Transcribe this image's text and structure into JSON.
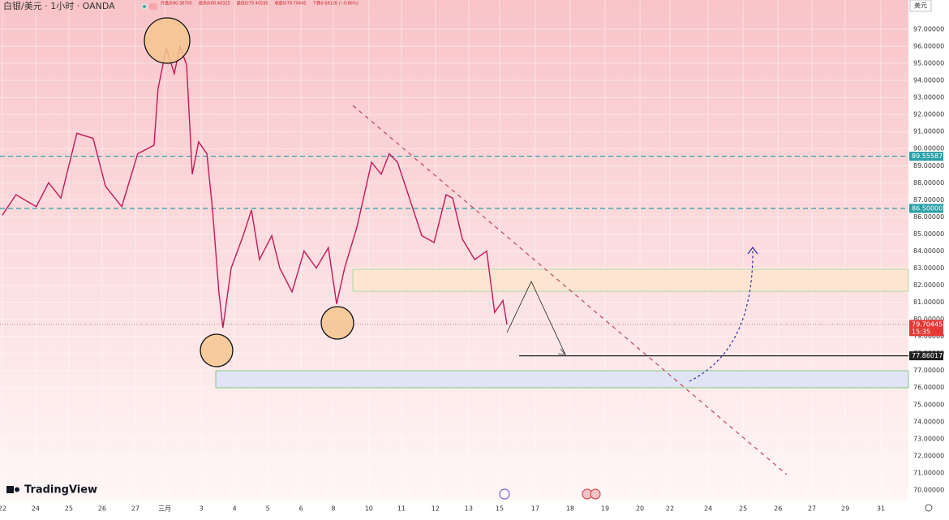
{
  "chart_data": {
    "type": "line",
    "symbol": "白银/美元 · 1小时 · OANDA",
    "ohlc": [
      "开盘价80.38705",
      "最高价80.48325",
      "最低价79.40595",
      "收盘价79.70445",
      "下跌0.68126 (−0.86%)"
    ],
    "currency": "美元",
    "logo": "TradingView",
    "color": "#c2185b",
    "x": [
      0,
      0.41,
      1.02,
      1.39,
      1.76,
      2.24,
      2.73,
      3.1,
      3.59,
      4.07,
      4.56,
      4.68,
      4.93,
      5.17,
      5.34,
      5.54,
      5.71,
      5.9,
      6.15,
      6.32,
      6.51,
      6.63,
      6.88,
      7.24,
      7.49,
      7.73,
      8.1,
      8.34,
      8.71,
      9.07,
      9.44,
      9.8,
      10.05,
      10.29,
      10.66,
      11.1,
      11.39,
      11.63,
      11.88,
      12.12,
      12.61,
      12.98,
      13.34,
      13.54,
      13.83,
      14.2,
      14.56,
      14.8,
      15.05,
      15.17
    ],
    "values": [
      86.1,
      87.3,
      86.6,
      88.0,
      87.1,
      90.9,
      90.6,
      87.8,
      86.6,
      89.7,
      90.2,
      93.5,
      95.9,
      94.4,
      96.0,
      94.9,
      88.5,
      90.4,
      89.7,
      86.4,
      81.6,
      79.5,
      83.0,
      84.9,
      86.4,
      83.5,
      84.9,
      83.0,
      81.6,
      84.0,
      83.0,
      84.2,
      80.9,
      83.0,
      85.4,
      89.2,
      88.5,
      89.7,
      89.2,
      87.8,
      84.9,
      84.5,
      87.3,
      87.1,
      84.7,
      83.5,
      84.0,
      80.4,
      81.1,
      79.7
    ],
    "xlim": [
      -0.07,
      27.24
    ],
    "xticks": [
      {
        "value": 0,
        "label": "22"
      },
      {
        "value": 1,
        "label": "24"
      },
      {
        "value": 2,
        "label": "25"
      },
      {
        "value": 3,
        "label": "26"
      },
      {
        "value": 4,
        "label": "27"
      },
      {
        "value": 4.88,
        "label": "三月"
      },
      {
        "value": 5.98,
        "label": "3"
      },
      {
        "value": 6.98,
        "label": "4"
      },
      {
        "value": 7.98,
        "label": "5"
      },
      {
        "value": 8.98,
        "label": "6"
      },
      {
        "value": 9.95,
        "label": "8"
      },
      {
        "value": 11.02,
        "label": "10"
      },
      {
        "value": 12,
        "label": "11"
      },
      {
        "value": 13.02,
        "label": "12"
      },
      {
        "value": 14.02,
        "label": "13"
      },
      {
        "value": 14.95,
        "label": "15"
      },
      {
        "value": 16.02,
        "label": "17"
      },
      {
        "value": 17.07,
        "label": "18"
      },
      {
        "value": 18.12,
        "label": "19"
      },
      {
        "value": 19.17,
        "label": "20"
      },
      {
        "value": 20.07,
        "label": "22"
      },
      {
        "value": 21.22,
        "label": "24"
      },
      {
        "value": 22.27,
        "label": "25"
      },
      {
        "value": 23.32,
        "label": "26"
      },
      {
        "value": 24.34,
        "label": "27"
      },
      {
        "value": 25.34,
        "label": "29"
      },
      {
        "value": 26.41,
        "label": "31"
      }
    ],
    "ylim": [
      69.38,
      98.71
    ],
    "yticks": [
      {
        "value": 70,
        "label": "70.00000"
      },
      {
        "value": 71,
        "label": "71.00000"
      },
      {
        "value": 72,
        "label": "72.00000"
      },
      {
        "value": 73,
        "label": "73.00000"
      },
      {
        "value": 74,
        "label": "74.00000"
      },
      {
        "value": 75,
        "label": "75.00000"
      },
      {
        "value": 76,
        "label": "76.00000"
      },
      {
        "value": 77,
        "label": "77.00000"
      },
      {
        "value": 78,
        "label": "78.00000"
      },
      {
        "value": 79,
        "label": "79.00000"
      },
      {
        "value": 80,
        "label": "80.00000"
      },
      {
        "value": 81,
        "label": "81.00000"
      },
      {
        "value": 82,
        "label": "82.00000"
      },
      {
        "value": 83,
        "label": "83.00000"
      },
      {
        "value": 84,
        "label": "84.00000"
      },
      {
        "value": 85,
        "label": "85.00000"
      },
      {
        "value": 86,
        "label": "86.00000"
      },
      {
        "value": 87,
        "label": "87.00000"
      },
      {
        "value": 88,
        "label": "88.00000"
      },
      {
        "value": 89,
        "label": "89.00000"
      },
      {
        "value": 90,
        "label": "90.00000"
      },
      {
        "value": 91,
        "label": "91.00000"
      },
      {
        "value": 92,
        "label": "92.00000"
      },
      {
        "value": 93,
        "label": "93.00000"
      },
      {
        "value": 94,
        "label": "94.00000"
      },
      {
        "value": 95,
        "label": "95.00000"
      },
      {
        "value": 96,
        "label": "96.00000"
      },
      {
        "value": 97,
        "label": "97.00000"
      }
    ],
    "grid": true,
    "levels": [
      {
        "value": 89.55587,
        "label": "89.55587",
        "color": "#26a0a8",
        "style": "dashed"
      },
      {
        "value": 86.5,
        "label": "86.50000",
        "color": "#26a0a8",
        "style": "dashed"
      },
      {
        "value": 79.70445,
        "label": "79.70445",
        "countdown": "15:35",
        "color": "#e53935",
        "style": "dotted"
      },
      {
        "value": 77.86017,
        "label": "77.86017",
        "color": "#222222",
        "style": "solid"
      }
    ]
  }
}
